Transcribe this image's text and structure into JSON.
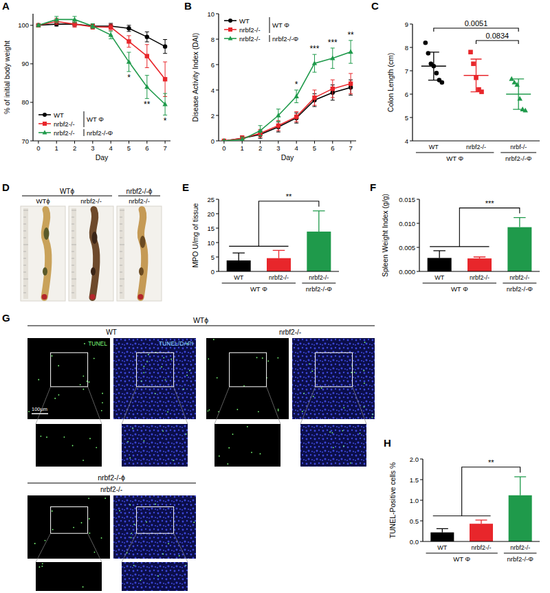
{
  "chart_data": [
    {
      "panel": "A",
      "type": "line",
      "x_label": "Day",
      "y_label": "% of initial body weight",
      "x": [
        0,
        1,
        2,
        3,
        4,
        5,
        6,
        7
      ],
      "xlim": [
        -0.3,
        7.3
      ],
      "xticks": [
        0,
        1,
        2,
        3,
        4,
        5,
        6,
        7
      ],
      "ylim": [
        70,
        103
      ],
      "yticks": [
        70,
        80,
        90,
        100
      ],
      "legend": "lower left",
      "series": [
        {
          "name": "WT",
          "group": "WT Φ",
          "color": "#000000",
          "marker": "circle",
          "values": [
            100,
            100.3,
            100.3,
            99.8,
            99.8,
            99.2,
            97,
            94.5
          ],
          "errors": [
            0.3,
            0.5,
            0.5,
            0.5,
            0.7,
            0.8,
            1.3,
            1.8
          ]
        },
        {
          "name": "nrbf2-/-",
          "group": "WT Φ",
          "color": "#e8262b",
          "marker": "square",
          "values": [
            100,
            101,
            100.3,
            99.6,
            99.5,
            95.8,
            92,
            86
          ],
          "errors": [
            0.3,
            0.8,
            0.8,
            0.6,
            0.8,
            1.5,
            3,
            4.5
          ]
        },
        {
          "name": "nrbf2-/-",
          "group": "nrbf2-/-Φ",
          "color": "#1f9a4b",
          "marker": "triangle",
          "values": [
            100,
            101.5,
            101.5,
            99.8,
            97.5,
            90.5,
            84,
            79.5
          ],
          "errors": [
            0.3,
            0.8,
            0.8,
            0.6,
            1,
            2.5,
            3,
            2.8
          ]
        }
      ],
      "annotations": [
        {
          "x": 5,
          "text": "*"
        },
        {
          "x": 6,
          "text": "**"
        },
        {
          "x": 7,
          "text": "*"
        }
      ]
    },
    {
      "panel": "B",
      "type": "line",
      "x_label": "Day",
      "y_label": "Disease Activity Index (DAI)",
      "x": [
        0,
        1,
        2,
        3,
        4,
        5,
        6,
        7
      ],
      "xlim": [
        -0.3,
        7.3
      ],
      "xticks": [
        0,
        1,
        2,
        3,
        4,
        5,
        6,
        7
      ],
      "ylim": [
        0,
        10
      ],
      "yticks": [
        0,
        2,
        4,
        6,
        8,
        10
      ],
      "legend": "upper left",
      "series": [
        {
          "name": "WT",
          "group": "WT Φ",
          "color": "#000000",
          "marker": "circle",
          "values": [
            0,
            0.2,
            0.5,
            1.1,
            1.8,
            3.2,
            3.8,
            4.2
          ],
          "errors": [
            0,
            0.2,
            0.3,
            0.4,
            0.4,
            0.5,
            0.6,
            0.6
          ]
        },
        {
          "name": "nrbf2-/-",
          "group": "WT Φ",
          "color": "#e8262b",
          "marker": "square",
          "values": [
            0,
            0.2,
            0.6,
            1.2,
            1.9,
            3.4,
            4.1,
            4.5
          ],
          "errors": [
            0,
            0.2,
            0.3,
            0.4,
            0.4,
            0.6,
            0.7,
            0.8
          ]
        },
        {
          "name": "nrbf2-/-",
          "group": "nrbf2-/-Φ",
          "color": "#1f9a4b",
          "marker": "triangle",
          "values": [
            0,
            0.1,
            0.8,
            2.0,
            3.5,
            6.1,
            6.5,
            7.0
          ],
          "errors": [
            0,
            0.2,
            0.4,
            0.5,
            0.5,
            0.7,
            0.8,
            0.9
          ]
        }
      ],
      "annotations": [
        {
          "x": 4,
          "text": "*"
        },
        {
          "x": 5,
          "text": "***"
        },
        {
          "x": 6,
          "text": "***"
        },
        {
          "x": 7,
          "text": "**"
        }
      ]
    },
    {
      "panel": "C",
      "type": "scatter",
      "y_label": "Colon Length (cm)",
      "categories": [
        "WT",
        "nrbf2-/-",
        "nrbf-/-"
      ],
      "category_groups": [
        "WT Φ",
        "WT Φ",
        "nrbf2-/-Φ"
      ],
      "colors": [
        "#000000",
        "#e8262b",
        "#1f9a4b"
      ],
      "points": [
        [
          8.2,
          7.75,
          7.3,
          7.2,
          6.9,
          6.6,
          6.5
        ],
        [
          7.8,
          7.3,
          6.7,
          6.2,
          6.1
        ],
        [
          6.65,
          6.5,
          6.4,
          5.8,
          5.35,
          5.3
        ]
      ],
      "means": [
        7.2,
        6.8,
        6.0
      ],
      "sds": [
        0.6,
        0.7,
        0.65
      ],
      "ylim": [
        4,
        9
      ],
      "yticks": [
        4,
        5,
        6,
        7,
        8,
        9
      ],
      "annotations": [
        {
          "text": "0.0051",
          "between": [
            "WT",
            "nrbf-/-"
          ]
        },
        {
          "text": "0.0834",
          "between": [
            "nrbf2-/-",
            "nrbf-/-"
          ]
        }
      ]
    },
    {
      "panel": "E",
      "type": "bar",
      "y_label": "MPO U/mg of tissue",
      "categories": [
        "WT",
        "nrbf2-/-",
        "nrbf2-/-"
      ],
      "category_groups": [
        "WT Φ",
        "WT Φ",
        "nrbf2-/-Φ"
      ],
      "colors": [
        "#000000",
        "#e8262b",
        "#1f9a4b"
      ],
      "values": [
        3.8,
        4.6,
        13.8
      ],
      "errors": [
        2.6,
        2.7,
        7.2
      ],
      "ylim": [
        0,
        25
      ],
      "yticks": [
        0,
        5,
        10,
        15,
        20,
        25
      ],
      "annotations": [
        {
          "text": "**",
          "between": [
            "WT Φ",
            "nrbf2-/-Φ"
          ]
        }
      ]
    },
    {
      "panel": "F",
      "type": "bar",
      "y_label": "Spleen Weight Index (g/g)",
      "categories": [
        "WT",
        "nrbf2-/-",
        "nrbf2-/-"
      ],
      "category_groups": [
        "WT Φ",
        "WT Φ",
        "nrbf2-/-Φ"
      ],
      "colors": [
        "#000000",
        "#e8262b",
        "#1f9a4b"
      ],
      "values": [
        0.0028,
        0.0027,
        0.0092
      ],
      "errors": [
        0.0015,
        0.0003,
        0.002
      ],
      "ylim": [
        0,
        0.015
      ],
      "yticks": [
        {
          "value": 0,
          "label": "0.000"
        },
        {
          "value": 0.005,
          "label": "0.005"
        },
        {
          "value": 0.01,
          "label": "0.010"
        },
        {
          "value": 0.015,
          "label": "0.015"
        }
      ],
      "annotations": [
        {
          "text": "***",
          "between": [
            "WT Φ",
            "nrbf2-/-Φ"
          ]
        }
      ]
    },
    {
      "panel": "H",
      "type": "bar",
      "y_label": "TUNEL-Positive cells %",
      "categories": [
        "WT",
        "nrbf2-/-",
        "nrbf2-/-"
      ],
      "category_groups": [
        "WT Φ",
        "WT Φ",
        "nrbf2-/-Φ"
      ],
      "colors": [
        "#000000",
        "#e8262b",
        "#1f9a4b"
      ],
      "values": [
        0.22,
        0.43,
        1.12
      ],
      "errors": [
        0.09,
        0.09,
        0.45
      ],
      "ylim": [
        0,
        2
      ],
      "yticks": [
        {
          "value": 0,
          "label": "0.0"
        },
        {
          "value": 0.5,
          "label": "0.5"
        },
        {
          "value": 1,
          "label": "1.0"
        },
        {
          "value": 1.5,
          "label": "1.5"
        },
        {
          "value": 2,
          "label": "2.0"
        }
      ],
      "annotations": [
        {
          "text": "**",
          "between": [
            "WT Φ",
            "nrbf2-/-Φ"
          ]
        }
      ]
    }
  ],
  "images": {
    "D": {
      "panel": "D",
      "headers": [
        "WTϕ",
        "nrbf2-/-ϕ"
      ],
      "labels": [
        "WTϕ",
        "nrbf2-/-",
        "nrbf2-/-"
      ]
    },
    "G": {
      "panel": "G",
      "blocks": [
        {
          "header": "WTϕ",
          "subheaders": [
            "WT",
            "nrbf2-/-"
          ]
        },
        {
          "header": "nrbf2-/-ϕ",
          "subheaders": [
            "nrbf2-/-"
          ]
        }
      ],
      "channels": [
        "TUNEL",
        "TUNEL/DAPI"
      ],
      "scale_bar": "100μm"
    }
  }
}
